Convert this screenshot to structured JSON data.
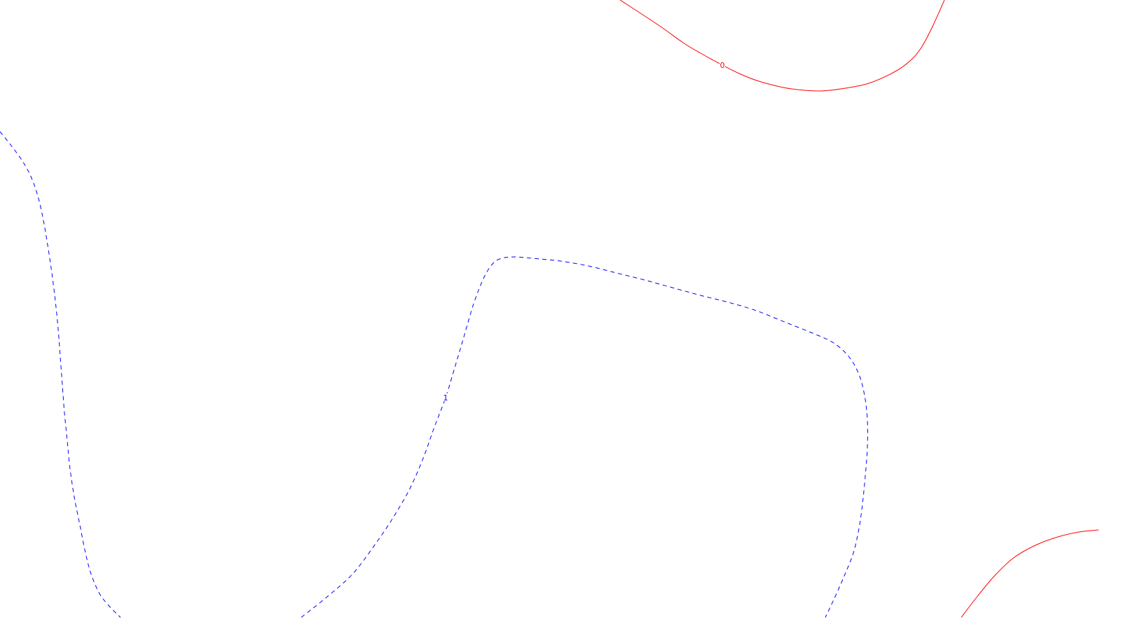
{
  "chart_data": {
    "type": "contour",
    "title": "",
    "xlabel": "",
    "ylabel": "",
    "grid": false,
    "legend": "none",
    "levels": [
      {
        "level": "0",
        "color": "#ff0000",
        "style": "solid",
        "segments": [
          {
            "points": [
              [
                885,
                0
              ],
              [
                940,
                36
              ],
              [
                975,
                61
              ],
              [
                1000,
                76
              ],
              [
                1031,
                93
              ],
              [
                1055,
                105
              ],
              [
                1080,
                115
              ],
              [
                1105,
                122
              ],
              [
                1130,
                127
              ],
              [
                1168,
                130
              ],
              [
                1200,
                127
              ],
              [
                1240,
                119
              ],
              [
                1278,
                102
              ],
              [
                1300,
                86
              ],
              [
                1315,
                68
              ],
              [
                1330,
                40
              ],
              [
                1348,
                0
              ]
            ],
            "label_at": [
              1031,
              93
            ]
          },
          {
            "points": [
              [
                1372,
                882
              ],
              [
                1395,
                852
              ],
              [
                1420,
                822
              ],
              [
                1448,
                796
              ],
              [
                1480,
                778
              ],
              [
                1510,
                767
              ],
              [
                1540,
                760
              ],
              [
                1568,
                757
              ]
            ],
            "label_at": null
          }
        ]
      },
      {
        "level": "1",
        "color": "#0000ff",
        "style": "dashed",
        "segments": [
          {
            "points": [
              [
                0,
                188
              ],
              [
                16,
                208
              ],
              [
                32,
                230
              ],
              [
                44,
                252
              ],
              [
                54,
                280
              ],
              [
                62,
                315
              ],
              [
                68,
                350
              ],
              [
                74,
                390
              ],
              [
                79,
                430
              ],
              [
                83,
                470
              ],
              [
                86,
                510
              ],
              [
                89,
                550
              ],
              [
                92,
                590
              ],
              [
                96,
                630
              ],
              [
                100,
                670
              ],
              [
                106,
                710
              ],
              [
                114,
                750
              ],
              [
                122,
                790
              ],
              [
                130,
                820
              ],
              [
                142,
                848
              ],
              [
                156,
                866
              ],
              [
                172,
                882
              ]
            ],
            "label_at": null
          },
          {
            "points": [
              [
                430,
                882
              ],
              [
                470,
                850
              ],
              [
                505,
                818
              ],
              [
                538,
                774
              ],
              [
                562,
                738
              ],
              [
                585,
                698
              ],
              [
                605,
                652
              ],
              [
                620,
                610
              ],
              [
                636,
                568
              ],
              [
                650,
                522
              ],
              [
                663,
                478
              ],
              [
                676,
                434
              ],
              [
                690,
                398
              ],
              [
                703,
                377
              ],
              [
                716,
                369
              ],
              [
                735,
                367
              ],
              [
                760,
                369
              ],
              [
                800,
                373
              ],
              [
                840,
                380
              ],
              [
                880,
                390
              ],
              [
                920,
                400
              ],
              [
                960,
                411
              ],
              [
                1000,
                422
              ],
              [
                1040,
                432
              ],
              [
                1080,
                444
              ],
              [
                1120,
                460
              ],
              [
                1160,
                476
              ],
              [
                1190,
                490
              ],
              [
                1212,
                510
              ],
              [
                1226,
                535
              ],
              [
                1234,
                565
              ],
              [
                1238,
                600
              ],
              [
                1238,
                640
              ],
              [
                1235,
                680
              ],
              [
                1231,
                720
              ],
              [
                1226,
                755
              ],
              [
                1218,
                790
              ],
              [
                1207,
                818
              ],
              [
                1194,
                848
              ],
              [
                1178,
                882
              ]
            ],
            "label_at": [
              636,
              568
            ]
          }
        ]
      }
    ]
  }
}
